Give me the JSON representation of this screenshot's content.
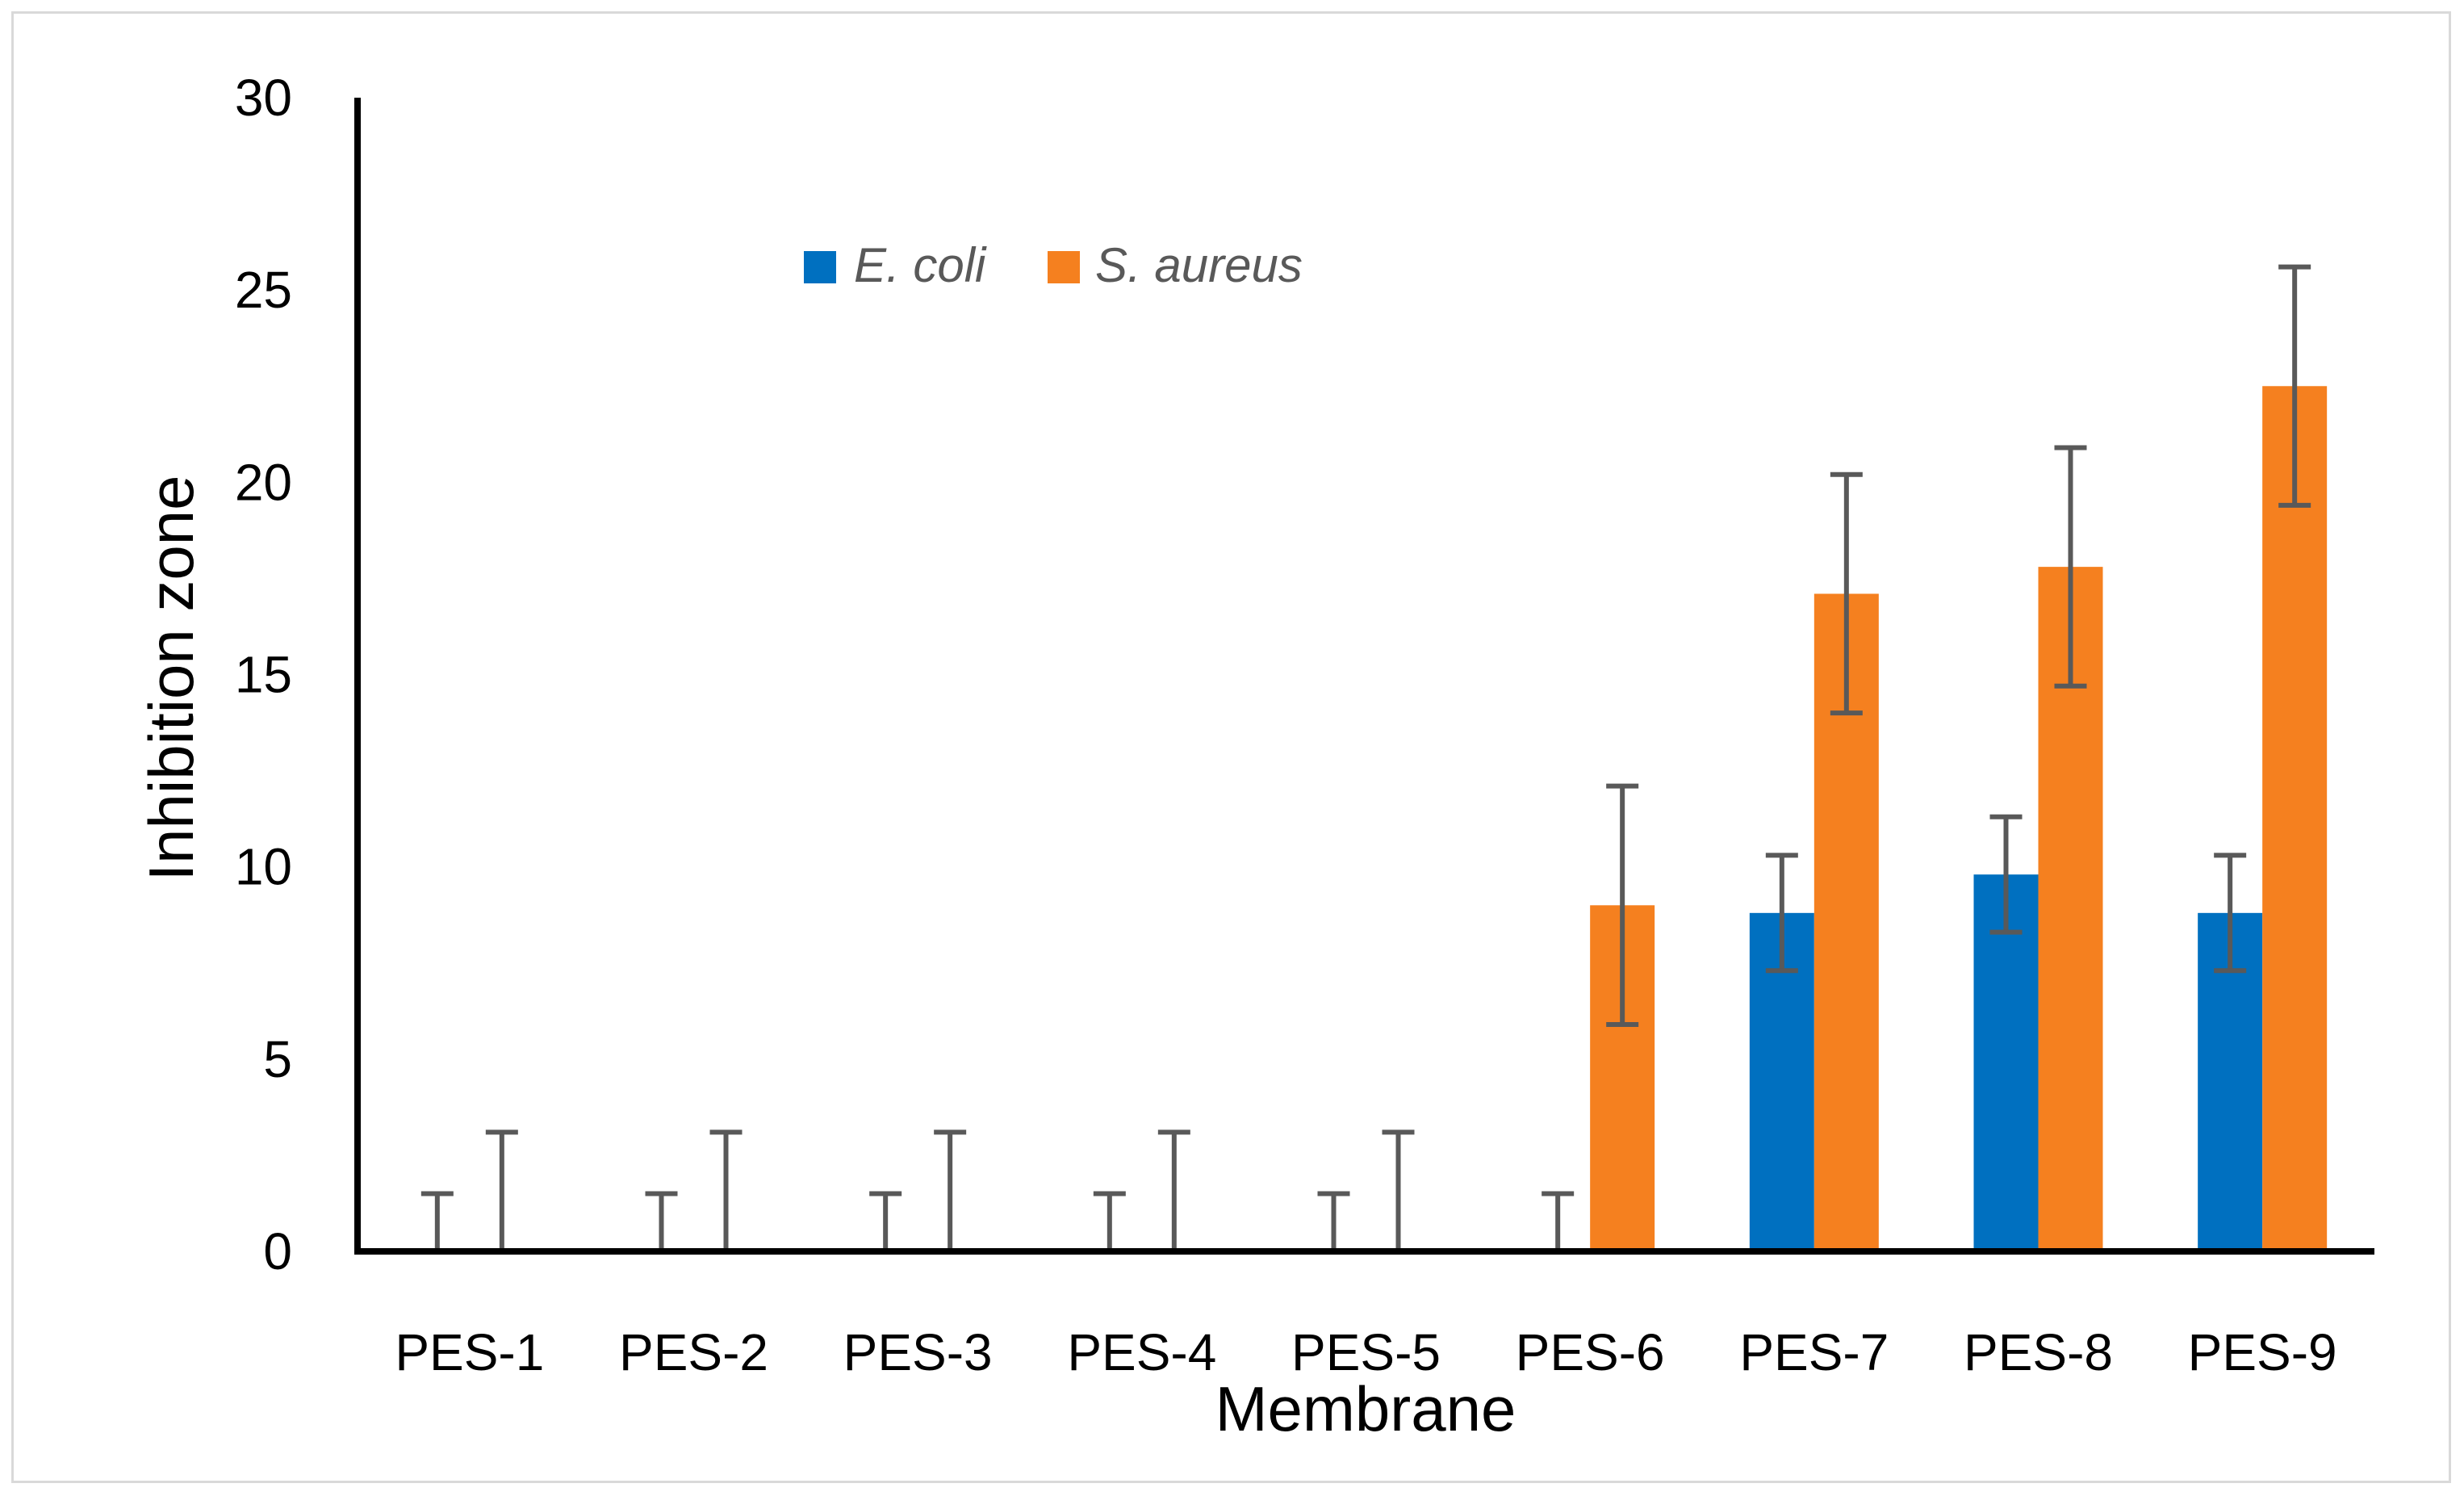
{
  "chart_data": {
    "type": "bar",
    "title": "",
    "xlabel": "Membrane",
    "ylabel": "Inhibition zone",
    "ylim": [
      0,
      30
    ],
    "yticks": [
      0,
      5,
      10,
      15,
      20,
      25,
      30
    ],
    "categories": [
      "PES-1",
      "PES-2",
      "PES-3",
      "PES-4",
      "PES-5",
      "PES-6",
      "PES-7",
      "PES-8",
      "PES-9"
    ],
    "series": [
      {
        "name": "E. coli",
        "color": "#0070c0",
        "values": [
          0,
          0,
          0,
          0,
          0,
          0,
          8.8,
          9.8,
          8.8
        ],
        "errors": [
          1.5,
          1.5,
          1.5,
          1.5,
          1.5,
          1.5,
          1.5,
          1.5,
          1.5
        ]
      },
      {
        "name": "S. aureus",
        "color": "#f5801f",
        "values": [
          0,
          0,
          0,
          0,
          0,
          9.0,
          17.1,
          17.8,
          22.5
        ],
        "errors": [
          3.1,
          3.1,
          3.1,
          3.1,
          3.1,
          3.1,
          3.1,
          3.1,
          3.1
        ]
      }
    ],
    "legend_position": "top-center",
    "grid": false,
    "error_bar_color": "#595959"
  }
}
